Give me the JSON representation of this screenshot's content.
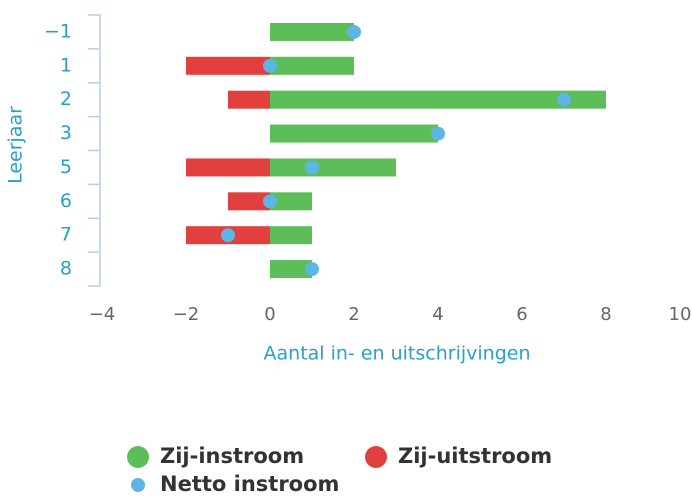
{
  "chart_data": {
    "type": "bar",
    "orientation": "horizontal",
    "y_label": "Leerjaar",
    "x_label": "Aantal in- en uitschrijvingen",
    "categories": [
      "−1",
      "1",
      "2",
      "3",
      "5",
      "6",
      "7",
      "8"
    ],
    "series": [
      {
        "name": "Zij-instroom",
        "color": "#5cbd59",
        "values": [
          2,
          2,
          8,
          4,
          3,
          1,
          1,
          1
        ]
      },
      {
        "name": "Zij-uitstroom",
        "color": "#e2403f",
        "values": [
          null,
          -2,
          -1,
          null,
          -2,
          -1,
          -2,
          null
        ]
      },
      {
        "name": "Netto instroom",
        "color": "#5bb6e6",
        "kind": "dot",
        "values": [
          2,
          0,
          7,
          4,
          1,
          0,
          -1,
          1
        ]
      }
    ],
    "xlim": [
      -4,
      10
    ],
    "xticks": [
      {
        "value": -4,
        "label": "−4"
      },
      {
        "value": -2,
        "label": "−2"
      },
      0,
      2,
      4,
      6,
      8,
      10
    ]
  }
}
